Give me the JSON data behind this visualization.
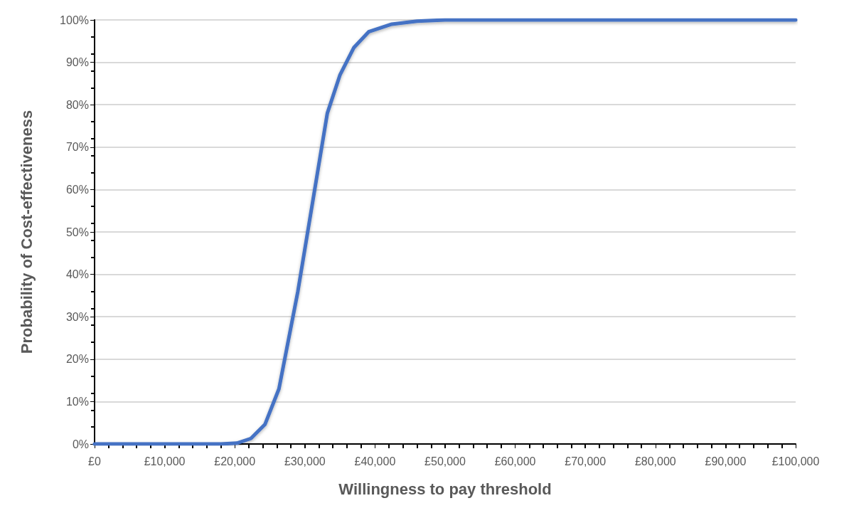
{
  "chart_data": {
    "type": "line",
    "xlabel": "Willingness to pay threshold",
    "ylabel": "Probability of Cost-effectiveness",
    "x": [
      0,
      10000,
      18000,
      20300,
      22300,
      24300,
      26300,
      29000,
      31300,
      33200,
      35000,
      37000,
      39100,
      42400,
      46000,
      50000,
      60000,
      80000,
      100000
    ],
    "series": [
      {
        "color": "#4472c4",
        "values": [
          0,
          0,
          0,
          0.2,
          1.3,
          4.6,
          13,
          36,
          59,
          78,
          87,
          93.5,
          97.2,
          99,
          99.7,
          100,
          100,
          100,
          100
        ]
      }
    ],
    "xlim": [
      0,
      100000
    ],
    "xticks": [
      {
        "value": 0,
        "label": "£0"
      },
      {
        "value": 10000,
        "label": "£10,000"
      },
      {
        "value": 20000,
        "label": "£20,000"
      },
      {
        "value": 30000,
        "label": "£30,000"
      },
      {
        "value": 40000,
        "label": "£40,000"
      },
      {
        "value": 50000,
        "label": "£50,000"
      },
      {
        "value": 60000,
        "label": "£60,000"
      },
      {
        "value": 70000,
        "label": "£70,000"
      },
      {
        "value": 80000,
        "label": "£80,000"
      },
      {
        "value": 90000,
        "label": "£90,000"
      },
      {
        "value": 100000,
        "label": "£100,000"
      }
    ],
    "ylim": [
      0,
      100
    ],
    "yticks": [
      {
        "value": 0,
        "label": "0%"
      },
      {
        "value": 10,
        "label": "10%"
      },
      {
        "value": 20,
        "label": "20%"
      },
      {
        "value": 30,
        "label": "30%"
      },
      {
        "value": 40,
        "label": "40%"
      },
      {
        "value": 50,
        "label": "50%"
      },
      {
        "value": 60,
        "label": "60%"
      },
      {
        "value": 70,
        "label": "70%"
      },
      {
        "value": 80,
        "label": "80%"
      },
      {
        "value": 90,
        "label": "90%"
      },
      {
        "value": 100,
        "label": "100%"
      }
    ],
    "grid": "y",
    "marker": "none",
    "line_style": "solid"
  }
}
